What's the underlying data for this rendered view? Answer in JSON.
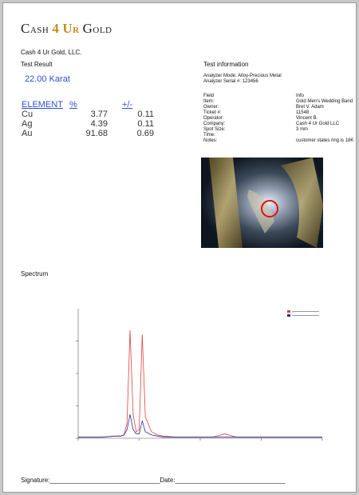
{
  "logo": {
    "part1_big": "C",
    "part1_small": "ASH",
    "part2": "4",
    "part3_big": "U",
    "part3_small": "R",
    "part4_big": "G",
    "part4_small": "OLD"
  },
  "company": "Cash 4 Ur Gold, LLC.",
  "test_result": {
    "label": "Test Result",
    "karat": "22.00 Karat"
  },
  "elements_table": {
    "headers": [
      "ELEMENT",
      "%",
      "+/-"
    ],
    "rows": [
      [
        "Cu",
        "3.77",
        "0.11"
      ],
      [
        "Ag",
        "4.39",
        "0.11"
      ],
      [
        "Au",
        "91.68",
        "0.69"
      ]
    ]
  },
  "test_information": {
    "title": "Test information",
    "analyzer_mode": "Analyzer Mode: Alloy-Precious Metal",
    "analyzer_serial": "Analyzer Serial #: 123456",
    "fields": [
      {
        "key": "Field",
        "value": "Info"
      },
      {
        "key": "Item:",
        "value": "Gold Men's Wedding Band"
      },
      {
        "key": "Owner:",
        "value": "Bret V. Adam"
      },
      {
        "key": "Ticket #:",
        "value": "11548"
      },
      {
        "key": "Operator:",
        "value": "Vincent B."
      },
      {
        "key": "Company:",
        "value": "Cash 4 Ur Gold LLC"
      },
      {
        "key": "Spot Size:",
        "value": "3 mm"
      },
      {
        "key": "Time:",
        "value": ""
      },
      {
        "key": "Notes:",
        "value": "customer states ring is 18K"
      }
    ]
  },
  "spectrum": {
    "label": "Spectrum"
  },
  "signature": {
    "text": "Signature:_______________________________Date:_______________________________"
  },
  "colors": {
    "accent_blue": "#2f4fd6",
    "logo_gold": "#c88a1a",
    "spectrum_red": "#e04040",
    "spectrum_blue": "#2a2a9a"
  },
  "chart_data": {
    "type": "line",
    "x": [
      0,
      2,
      4,
      6,
      7,
      7.5,
      8,
      8.5,
      9,
      9.5,
      10,
      10.5,
      11,
      12,
      13,
      14,
      16,
      18,
      20,
      22,
      24,
      26,
      28,
      30,
      32,
      34,
      36,
      38,
      40
    ],
    "series": [
      {
        "values": [
          1,
          1,
          1,
          2,
          2,
          3,
          14,
          100,
          22,
          6,
          8,
          96,
          20,
          6,
          3,
          2,
          1,
          1,
          1,
          1,
          4,
          1,
          1,
          1,
          1,
          1,
          1,
          1,
          1
        ]
      },
      {
        "values": [
          1,
          1,
          1,
          2,
          2,
          3,
          8,
          22,
          8,
          4,
          4,
          16,
          6,
          3,
          2,
          1,
          1,
          1,
          1,
          1,
          1,
          1,
          1,
          1,
          1,
          1,
          1,
          1,
          1
        ]
      }
    ],
    "ylim": [
      0,
      120
    ],
    "xlim": [
      0,
      40
    ],
    "grid": false,
    "legend": "top-right"
  }
}
